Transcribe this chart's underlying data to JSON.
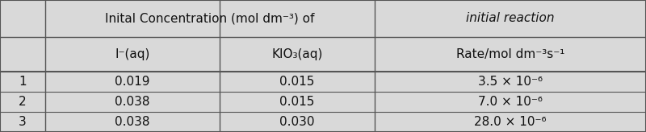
{
  "header_row1_col2": "Inital Concentration (mol dm⁻³) of",
  "header_row1_col3": "initial reaction",
  "header_row2_col2a": "I⁻(aq)",
  "header_row2_col2b": "KIO₃(aq)",
  "header_row2_col3": "Rate/mol dm⁻³s⁻¹",
  "rows": [
    [
      "1",
      "0.019",
      "0.015",
      "3.5 × 10⁻⁶"
    ],
    [
      "2",
      "0.038",
      "0.015",
      "7.0 × 10⁻⁶"
    ],
    [
      "3",
      "0.038",
      "0.030",
      "28.0 × 10⁻⁶"
    ]
  ],
  "bg_color": "#d9d9d9",
  "border_color": "#555555",
  "text_color": "#111111",
  "font_size": 11,
  "header_font_size": 11
}
